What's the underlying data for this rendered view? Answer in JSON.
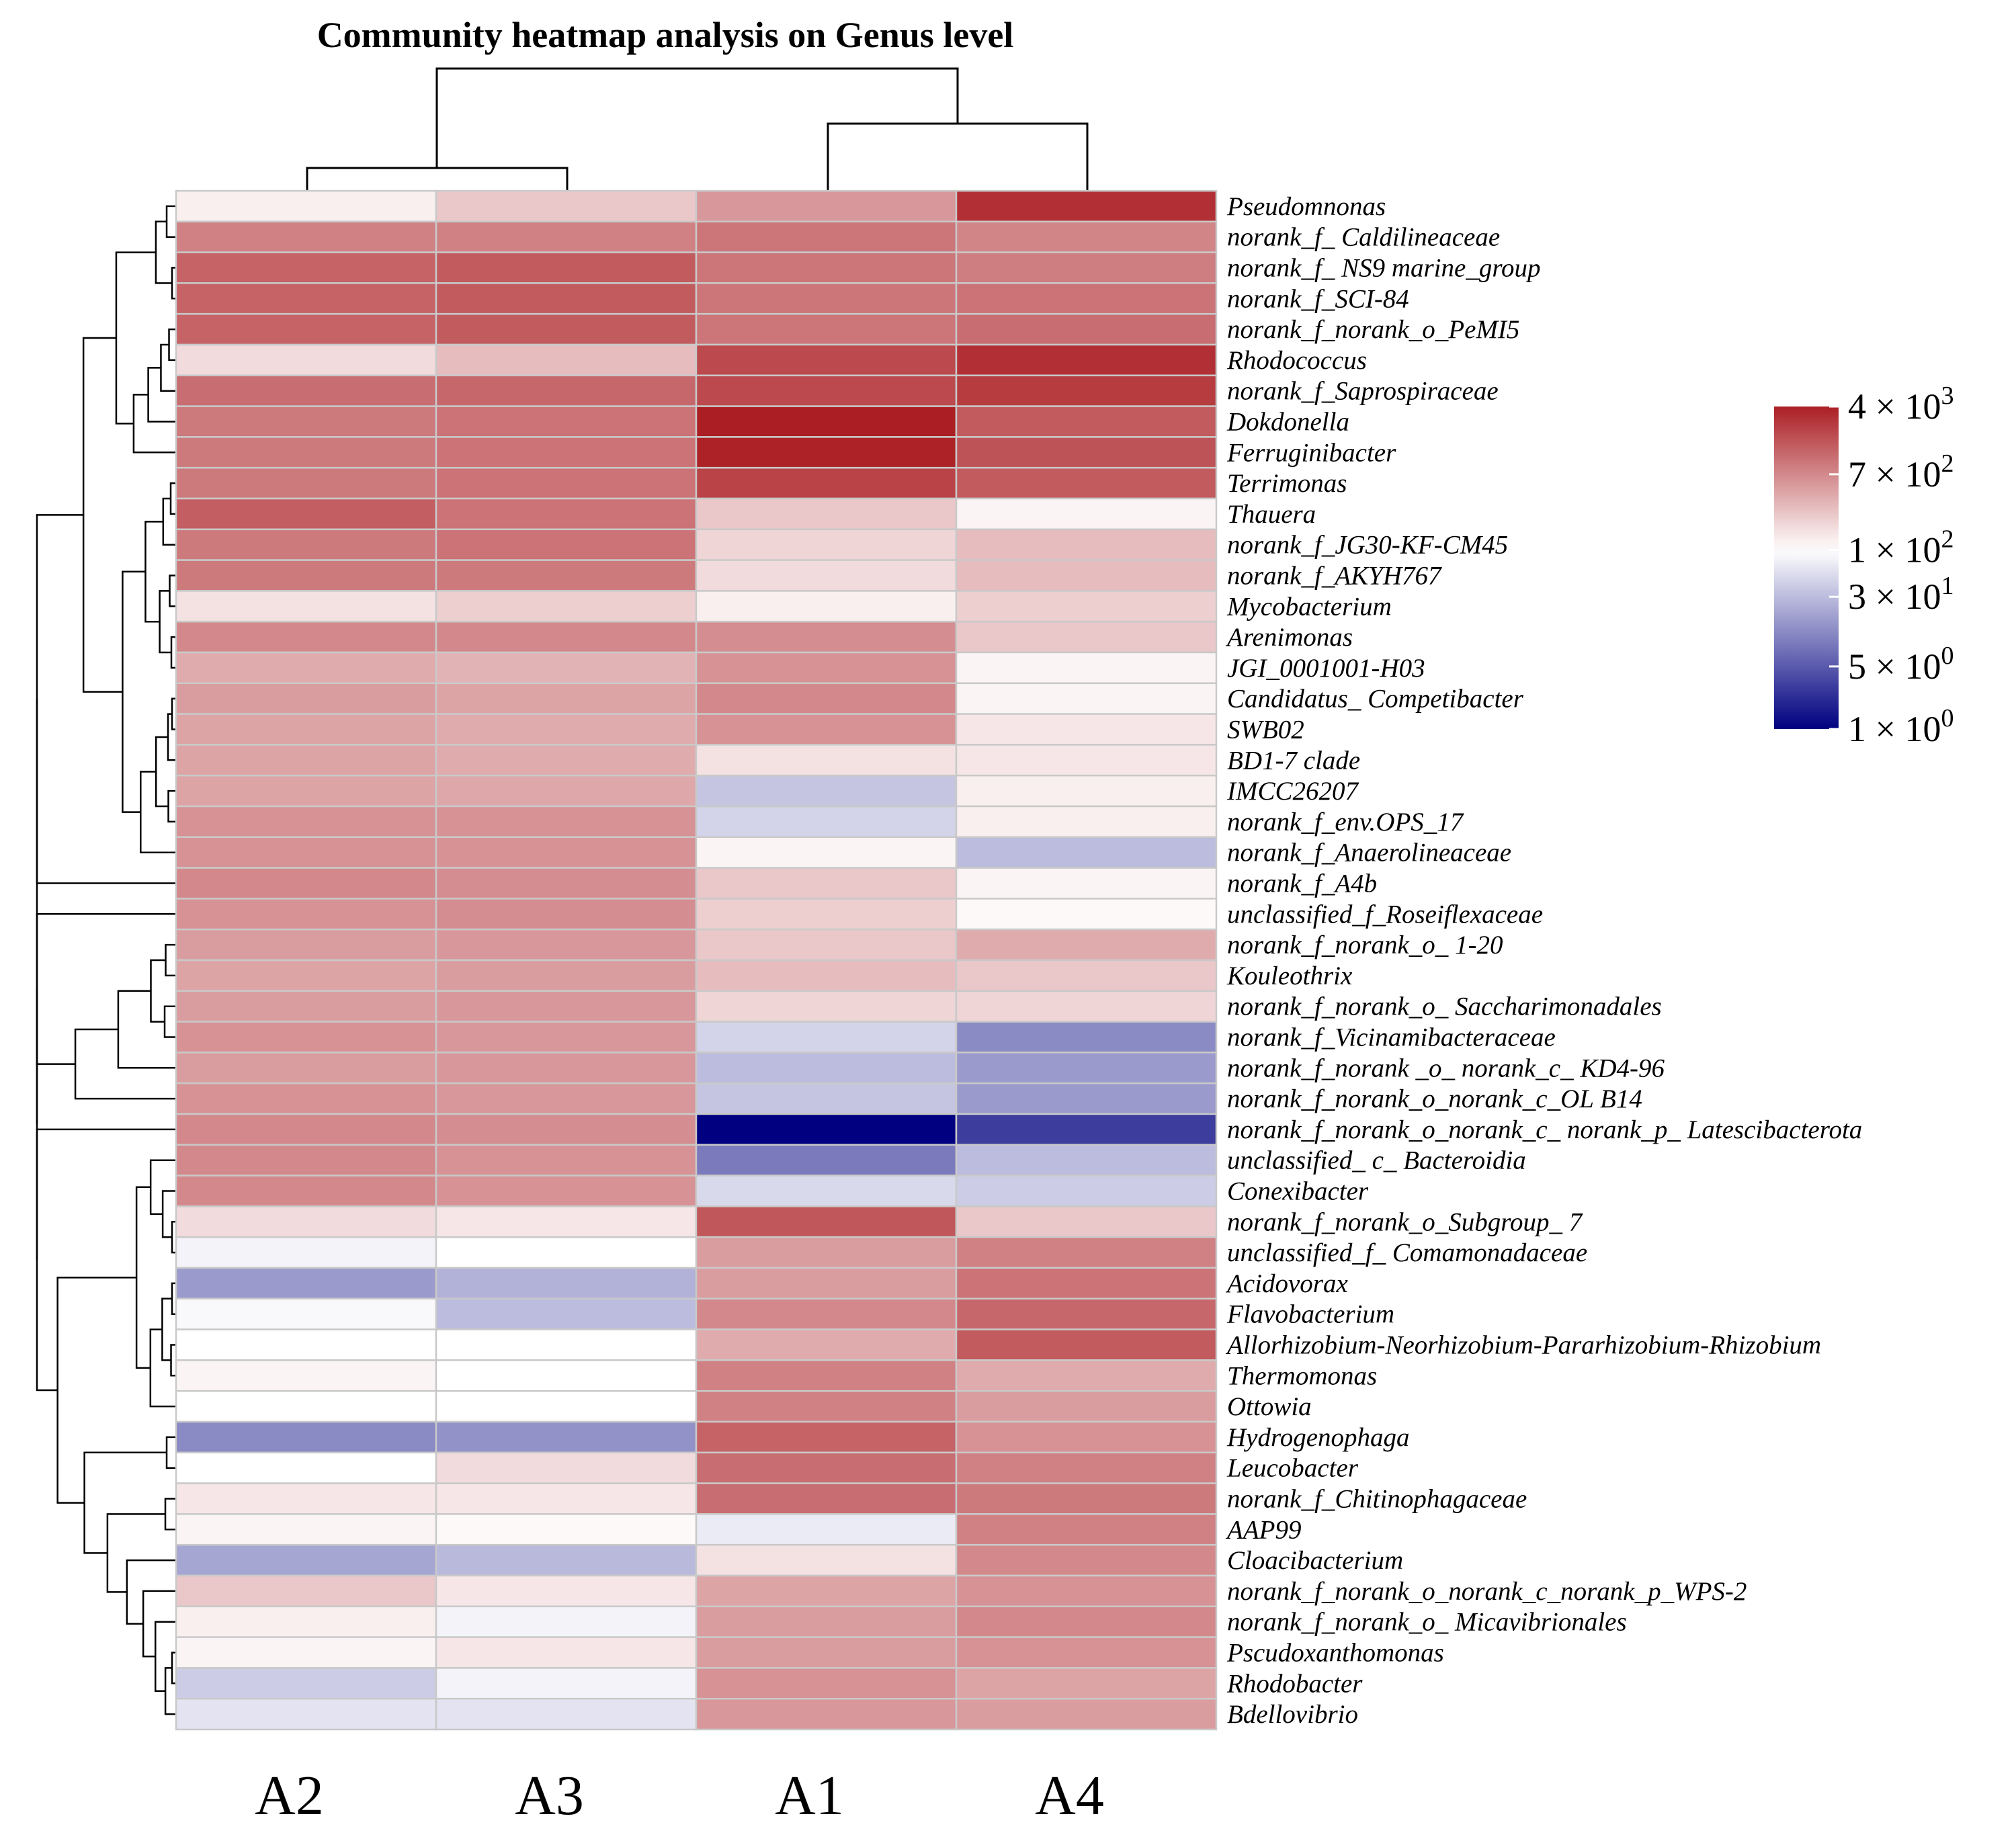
{
  "chart_data": {
    "type": "heatmap",
    "title": "Community heatmap analysis on Genus level",
    "columns": [
      "A2",
      "A3",
      "A1",
      "A4"
    ],
    "rows": [
      "Pseudomnonas",
      "norank_f_ Caldilineaceae",
      "norank_f_ NS9 marine_group",
      "norank_f_SCI-84",
      "norank_f_norank_o_PeMI5",
      "Rhodococcus",
      "norank_f_Saprospiraceae",
      "Dokdonella",
      "Ferruginibacter",
      "Terrimonas",
      "Thauera",
      "norank_f_JG30-KF-CM45",
      "norank_f_AKYH767",
      "Mycobacterium",
      "Arenimonas",
      "JGI_0001001-H03",
      "Candidatus_ Competibacter",
      "SWB02",
      "BD1-7 clade",
      "IMCC26207",
      "norank_f_env.OPS_17",
      "norank_f_Anaerolineaceae",
      "norank_f_A4b",
      "unclassified_f_Roseiflexaceae",
      "norank_f_norank_o_ 1-20",
      "Kouleothrix",
      "norank_f_norank_o_ Saccharimonadales",
      "norank_f_Vicinamibacteraceae",
      "norank_f_norank _o_ norank_c_ KD4-96",
      "norank_f_norank_o_norank_c_OL B14",
      "norank_f_norank_o_norank_c_ norank_p_ Latescibacterota",
      "unclassified_ c_ Bacteroidia",
      "Conexibacter",
      "norank_f_norank_o_Subgroup_ 7",
      "unclassified_f_ Comamonadaceae",
      "Acidovorax",
      "Flavobacterium",
      "Allorhizobium-Neorhizobium-Pararhizobium-Rhizobium",
      "Thermomonas",
      "Ottowia",
      "Hydrogenophaga",
      "Leucobacter",
      "norank_f_Chitinophagaceae",
      "AAP99",
      "Cloacibacterium",
      "norank_f_norank_o_norank_c_norank_p_WPS-2",
      "norank_f_norank_o_ Micavibrionales",
      "Pscudoxanthomonas",
      "Rhodobacter",
      "Bdellovibrio"
    ],
    "values": [
      [
        130,
        250,
        550,
        3000
      ],
      [
        800,
        800,
        950,
        750
      ],
      [
        1300,
        1500,
        950,
        850
      ],
      [
        1300,
        1500,
        950,
        1000
      ],
      [
        1300,
        1500,
        950,
        1100
      ],
      [
        180,
        300,
        2000,
        3000
      ],
      [
        1100,
        1200,
        2000,
        2500
      ],
      [
        900,
        1000,
        4000,
        1500
      ],
      [
        900,
        1000,
        3800,
        1700
      ],
      [
        900,
        1000,
        2200,
        1500
      ],
      [
        1400,
        1000,
        250,
        120
      ],
      [
        900,
        1000,
        200,
        300
      ],
      [
        900,
        900,
        180,
        300
      ],
      [
        160,
        220,
        130,
        220
      ],
      [
        700,
        700,
        650,
        250
      ],
      [
        400,
        350,
        600,
        120
      ],
      [
        500,
        450,
        700,
        120
      ],
      [
        450,
        400,
        600,
        150
      ],
      [
        450,
        400,
        160,
        150
      ],
      [
        450,
        420,
        35,
        130
      ],
      [
        600,
        600,
        45,
        130
      ],
      [
        600,
        600,
        120,
        30
      ],
      [
        700,
        650,
        250,
        120
      ],
      [
        600,
        650,
        220,
        110
      ],
      [
        500,
        550,
        250,
        400
      ],
      [
        450,
        500,
        300,
        250
      ],
      [
        500,
        550,
        200,
        200
      ],
      [
        600,
        550,
        45,
        12
      ],
      [
        500,
        550,
        30,
        16
      ],
      [
        600,
        550,
        35,
        16
      ],
      [
        700,
        650,
        1,
        3
      ],
      [
        700,
        600,
        9,
        30
      ],
      [
        700,
        600,
        50,
        40
      ],
      [
        180,
        150,
        1600,
        250
      ],
      [
        80,
        100,
        500,
        800
      ],
      [
        16,
        25,
        500,
        1000
      ],
      [
        90,
        30,
        700,
        1200
      ],
      [
        100,
        100,
        400,
        1500
      ],
      [
        120,
        100,
        800,
        400
      ],
      [
        100,
        100,
        800,
        500
      ],
      [
        12,
        14,
        1300,
        600
      ],
      [
        100,
        180,
        1100,
        800
      ],
      [
        150,
        150,
        1100,
        900
      ],
      [
        120,
        110,
        70,
        800
      ],
      [
        20,
        28,
        160,
        700
      ],
      [
        250,
        150,
        450,
        600
      ],
      [
        130,
        80,
        500,
        700
      ],
      [
        120,
        150,
        500,
        600
      ],
      [
        40,
        80,
        600,
        450
      ],
      [
        60,
        60,
        550,
        500
      ]
    ],
    "scale": "log",
    "color_range": [
      1,
      4000
    ],
    "colorbar_labels": [
      "4 × 10",
      "7 × 10",
      "1 × 10",
      "3 × 10",
      "5 × 10",
      "1 × 10"
    ],
    "colorbar_exponents": [
      "3",
      "2",
      "2",
      "1",
      "0",
      "0"
    ],
    "colorbar_values": [
      4000,
      700,
      100,
      30,
      5,
      1
    ],
    "colors": {
      "high": "#ab1f24",
      "mid": "#ffffff",
      "low": "#000080",
      "grid": "#c9c9c9",
      "dendrogram": "#000000"
    }
  }
}
